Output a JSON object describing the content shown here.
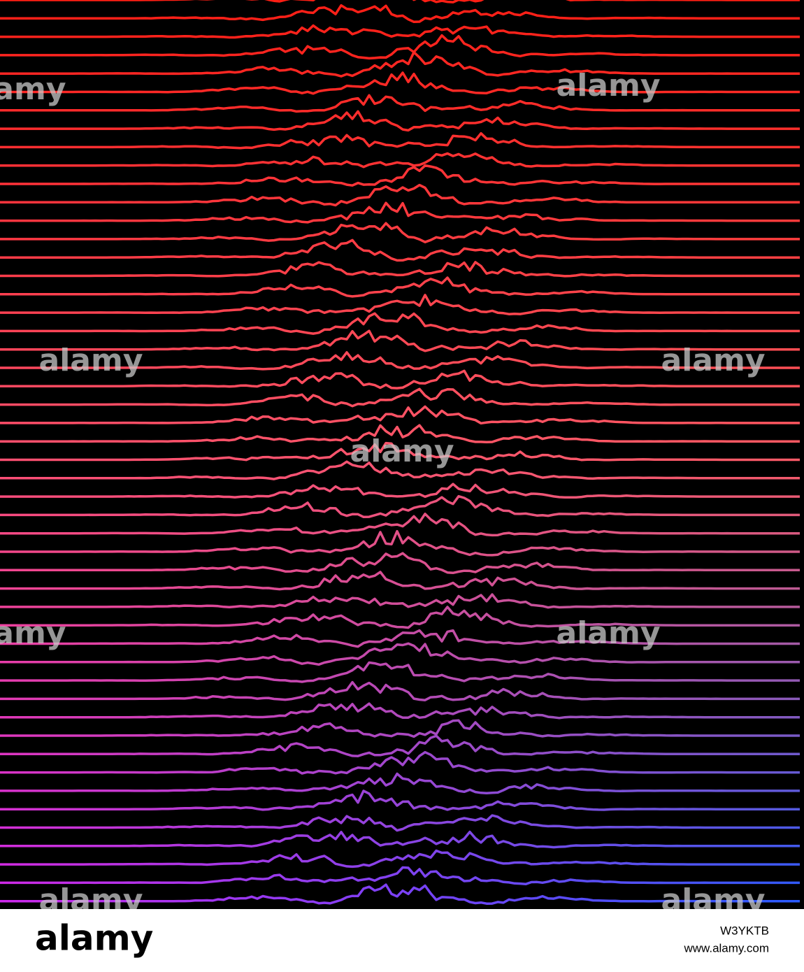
{
  "watermark": "alamy",
  "footer": {
    "logo": "alamy",
    "image_id": "W3YKTB",
    "url": "www.alamy.com"
  }
}
